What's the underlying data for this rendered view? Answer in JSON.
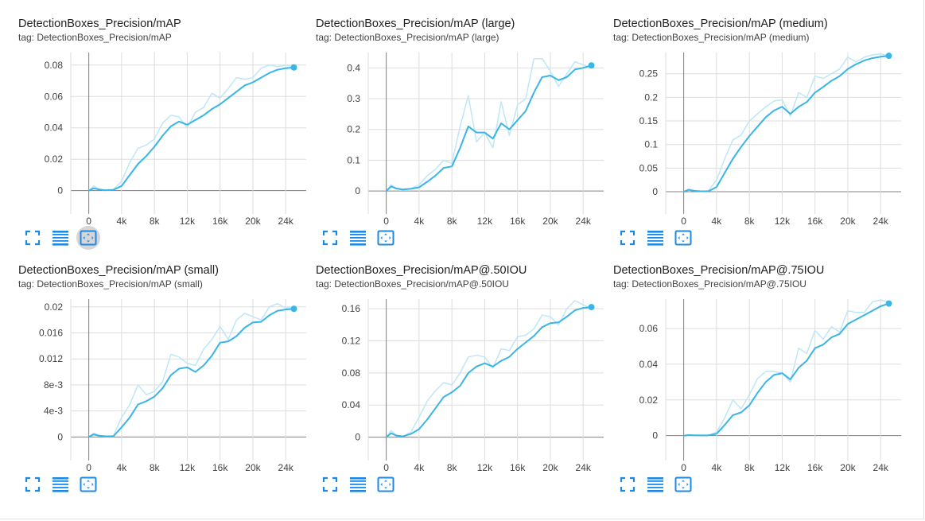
{
  "colors": {
    "smoothed": "#39b5e6",
    "raw": "#bfe6f7",
    "axis": "#808080",
    "grid": "#dddddd",
    "icon": "#1e88e5"
  },
  "buttons": {
    "fit": "fit-domain-icon",
    "log": "toggle-log-scale-icon",
    "expand": "expand-chart-icon"
  },
  "chart_data": [
    {
      "type": "line",
      "title": "DetectionBoxes_Precision/mAP",
      "tag": "tag: DetectionBoxes_Precision/mAP",
      "xlim": [
        -2000,
        26500
      ],
      "ylim": [
        -0.0108,
        0.088
      ],
      "x_ticks": [
        0,
        4000,
        8000,
        12000,
        16000,
        20000,
        24000
      ],
      "x_tick_labels": [
        "0",
        "4k",
        "8k",
        "12k",
        "16k",
        "20k",
        "24k"
      ],
      "y_ticks": [
        0,
        0.02,
        0.04,
        0.06,
        0.08
      ],
      "y_tick_labels": [
        "0",
        "0.02",
        "0.04",
        "0.06",
        "0.08"
      ],
      "x": [
        0,
        600,
        1200,
        2000,
        3000,
        4000,
        5000,
        6000,
        7000,
        8000,
        9000,
        10000,
        11000,
        12000,
        13000,
        14000,
        15000,
        16000,
        17000,
        18000,
        19000,
        20000,
        21000,
        22000,
        23000,
        24000,
        25000
      ],
      "series": [
        {
          "name": "smoothed",
          "values": [
            0.0,
            0.0015,
            0.0008,
            0.0003,
            0.0005,
            0.003,
            0.01,
            0.017,
            0.022,
            0.028,
            0.035,
            0.041,
            0.044,
            0.042,
            0.045,
            0.048,
            0.052,
            0.055,
            0.059,
            0.063,
            0.067,
            0.069,
            0.072,
            0.075,
            0.077,
            0.078,
            0.0785
          ]
        },
        {
          "name": "raw",
          "values": [
            0.0,
            0.003,
            0.001,
            0.0,
            0.0008,
            0.006,
            0.018,
            0.027,
            0.029,
            0.033,
            0.043,
            0.048,
            0.047,
            0.04,
            0.05,
            0.053,
            0.062,
            0.059,
            0.065,
            0.072,
            0.071,
            0.072,
            0.078,
            0.08,
            0.079,
            0.08,
            0.079
          ]
        }
      ]
    },
    {
      "type": "line",
      "title": "DetectionBoxes_Precision/mAP (large)",
      "tag": "tag: DetectionBoxes_Precision/mAP (large)",
      "xlim": [
        -2000,
        26500
      ],
      "ylim": [
        -0.054,
        0.45
      ],
      "x_ticks": [
        0,
        4000,
        8000,
        12000,
        16000,
        20000,
        24000
      ],
      "x_tick_labels": [
        "0",
        "4k",
        "8k",
        "12k",
        "16k",
        "20k",
        "24k"
      ],
      "y_ticks": [
        0,
        0.1,
        0.2,
        0.3,
        0.4
      ],
      "y_tick_labels": [
        "0",
        "0.1",
        "0.2",
        "0.3",
        "0.4"
      ],
      "x": [
        0,
        600,
        1200,
        2000,
        3000,
        4000,
        5000,
        6000,
        7000,
        8000,
        9000,
        10000,
        11000,
        12000,
        13000,
        14000,
        15000,
        16000,
        17000,
        18000,
        19000,
        20000,
        21000,
        22000,
        23000,
        24000,
        25000
      ],
      "series": [
        {
          "name": "smoothed",
          "values": [
            0.0,
            0.015,
            0.008,
            0.005,
            0.007,
            0.012,
            0.03,
            0.05,
            0.075,
            0.08,
            0.14,
            0.21,
            0.19,
            0.19,
            0.17,
            0.22,
            0.2,
            0.23,
            0.26,
            0.32,
            0.37,
            0.375,
            0.36,
            0.37,
            0.395,
            0.4,
            0.408
          ]
        },
        {
          "name": "raw",
          "values": [
            0.0,
            0.02,
            0.01,
            0.006,
            0.008,
            0.02,
            0.05,
            0.07,
            0.1,
            0.09,
            0.21,
            0.31,
            0.16,
            0.19,
            0.14,
            0.29,
            0.18,
            0.28,
            0.3,
            0.43,
            0.43,
            0.39,
            0.34,
            0.38,
            0.42,
            0.41,
            0.4
          ]
        }
      ]
    },
    {
      "type": "line",
      "title": "DetectionBoxes_Precision/mAP (medium)",
      "tag": "tag: DetectionBoxes_Precision/mAP (medium)",
      "xlim": [
        -2000,
        26500
      ],
      "ylim": [
        -0.0336,
        0.295
      ],
      "x_ticks": [
        0,
        4000,
        8000,
        12000,
        16000,
        20000,
        24000
      ],
      "x_tick_labels": [
        "0",
        "4k",
        "8k",
        "12k",
        "16k",
        "20k",
        "24k"
      ],
      "y_ticks": [
        0,
        0.05,
        0.1,
        0.15,
        0.2,
        0.25
      ],
      "y_tick_labels": [
        "0",
        "0.05",
        "0.1",
        "0.15",
        "0.2",
        "0.25"
      ],
      "x": [
        0,
        600,
        1200,
        2000,
        3000,
        4000,
        5000,
        6000,
        7000,
        8000,
        9000,
        10000,
        11000,
        12000,
        13000,
        14000,
        15000,
        16000,
        17000,
        18000,
        19000,
        20000,
        21000,
        22000,
        23000,
        24000,
        25000
      ],
      "series": [
        {
          "name": "smoothed",
          "values": [
            0.0,
            0.004,
            0.002,
            0.001,
            0.001,
            0.01,
            0.04,
            0.07,
            0.095,
            0.118,
            0.138,
            0.158,
            0.172,
            0.18,
            0.165,
            0.18,
            0.19,
            0.21,
            0.222,
            0.235,
            0.245,
            0.26,
            0.27,
            0.278,
            0.283,
            0.286,
            0.288
          ]
        },
        {
          "name": "raw",
          "values": [
            0.0,
            0.006,
            0.003,
            0.001,
            0.002,
            0.025,
            0.07,
            0.11,
            0.12,
            0.15,
            0.165,
            0.18,
            0.192,
            0.195,
            0.16,
            0.21,
            0.2,
            0.245,
            0.24,
            0.25,
            0.26,
            0.285,
            0.275,
            0.285,
            0.29,
            0.292,
            0.288
          ]
        }
      ]
    },
    {
      "type": "line",
      "title": "DetectionBoxes_Precision/mAP (small)",
      "tag": "tag: DetectionBoxes_Precision/mAP (small)",
      "xlim": [
        -2000,
        26500
      ],
      "ylim": [
        -0.00265,
        0.0212
      ],
      "x_ticks": [
        0,
        4000,
        8000,
        12000,
        16000,
        20000,
        24000
      ],
      "x_tick_labels": [
        "0",
        "4k",
        "8k",
        "12k",
        "16k",
        "20k",
        "24k"
      ],
      "y_ticks": [
        0,
        0.004,
        0.008,
        0.012,
        0.016,
        0.02
      ],
      "y_tick_labels": [
        "0",
        "4e-3",
        "8e-3",
        "0.012",
        "0.016",
        "0.02"
      ],
      "x": [
        0,
        600,
        1200,
        2000,
        3000,
        4000,
        5000,
        6000,
        7000,
        8000,
        9000,
        10000,
        11000,
        12000,
        13000,
        14000,
        15000,
        16000,
        17000,
        18000,
        19000,
        20000,
        21000,
        22000,
        23000,
        24000,
        25000
      ],
      "series": [
        {
          "name": "smoothed",
          "values": [
            0.0,
            0.0004,
            0.0002,
            0.0001,
            0.0001,
            0.0015,
            0.003,
            0.005,
            0.0055,
            0.0062,
            0.0075,
            0.0095,
            0.0105,
            0.0107,
            0.01,
            0.011,
            0.0125,
            0.0145,
            0.0147,
            0.0155,
            0.0168,
            0.0176,
            0.0177,
            0.0187,
            0.0194,
            0.0196,
            0.0197
          ]
        },
        {
          "name": "raw",
          "values": [
            0.0,
            0.0006,
            0.0003,
            0.0001,
            0.0002,
            0.003,
            0.005,
            0.008,
            0.0065,
            0.007,
            0.0085,
            0.0127,
            0.0123,
            0.0113,
            0.011,
            0.0135,
            0.015,
            0.017,
            0.015,
            0.018,
            0.019,
            0.0185,
            0.018,
            0.02,
            0.0205,
            0.0198,
            0.02
          ]
        }
      ]
    },
    {
      "type": "line",
      "title": "DetectionBoxes_Precision/mAP@.50IOU",
      "tag": "tag: DetectionBoxes_Precision/mAP@.50IOU",
      "xlim": [
        -2000,
        26500
      ],
      "ylim": [
        -0.0212,
        0.172
      ],
      "x_ticks": [
        0,
        4000,
        8000,
        12000,
        16000,
        20000,
        24000
      ],
      "x_tick_labels": [
        "0",
        "4k",
        "8k",
        "12k",
        "16k",
        "20k",
        "24k"
      ],
      "y_ticks": [
        0,
        0.04,
        0.08,
        0.12,
        0.16
      ],
      "y_tick_labels": [
        "0",
        "0.04",
        "0.08",
        "0.12",
        "0.16"
      ],
      "x": [
        0,
        600,
        1200,
        2000,
        3000,
        4000,
        5000,
        6000,
        7000,
        8000,
        9000,
        10000,
        11000,
        12000,
        13000,
        14000,
        15000,
        16000,
        17000,
        18000,
        19000,
        20000,
        21000,
        22000,
        23000,
        24000,
        25000
      ],
      "series": [
        {
          "name": "smoothed",
          "values": [
            0.0,
            0.005,
            0.002,
            0.001,
            0.004,
            0.01,
            0.022,
            0.036,
            0.05,
            0.056,
            0.064,
            0.08,
            0.088,
            0.092,
            0.088,
            0.095,
            0.1,
            0.11,
            0.118,
            0.126,
            0.137,
            0.142,
            0.143,
            0.15,
            0.158,
            0.161,
            0.162
          ]
        },
        {
          "name": "raw",
          "values": [
            0.0,
            0.008,
            0.003,
            0.001,
            0.006,
            0.025,
            0.045,
            0.058,
            0.068,
            0.065,
            0.08,
            0.1,
            0.102,
            0.1,
            0.086,
            0.11,
            0.108,
            0.125,
            0.127,
            0.135,
            0.152,
            0.15,
            0.14,
            0.16,
            0.17,
            0.165,
            0.16
          ]
        }
      ]
    },
    {
      "type": "line",
      "title": "DetectionBoxes_Precision/mAP@.75IOU",
      "tag": "tag: DetectionBoxes_Precision/mAP@.75IOU",
      "xlim": [
        -2000,
        26500
      ],
      "ylim": [
        -0.0104,
        0.0765
      ],
      "x_ticks": [
        0,
        4000,
        8000,
        12000,
        16000,
        20000,
        24000
      ],
      "x_tick_labels": [
        "0",
        "4k",
        "8k",
        "12k",
        "16k",
        "20k",
        "24k"
      ],
      "y_ticks": [
        0,
        0.02,
        0.04,
        0.06
      ],
      "y_tick_labels": [
        "0",
        "0.02",
        "0.04",
        "0.06"
      ],
      "x": [
        0,
        600,
        1200,
        2000,
        3000,
        4000,
        5000,
        6000,
        7000,
        8000,
        9000,
        10000,
        11000,
        12000,
        13000,
        14000,
        15000,
        16000,
        17000,
        18000,
        19000,
        20000,
        21000,
        22000,
        23000,
        24000,
        25000
      ],
      "series": [
        {
          "name": "smoothed",
          "values": [
            0.0,
            0.0003,
            0.0002,
            0.0001,
            0.0001,
            0.001,
            0.006,
            0.0115,
            0.013,
            0.017,
            0.024,
            0.03,
            0.034,
            0.035,
            0.0315,
            0.038,
            0.042,
            0.049,
            0.051,
            0.055,
            0.057,
            0.0625,
            0.065,
            0.0675,
            0.07,
            0.0725,
            0.074
          ]
        },
        {
          "name": "raw",
          "values": [
            0.0,
            0.0005,
            0.0003,
            0.0001,
            0.0002,
            0.002,
            0.01,
            0.02,
            0.015,
            0.023,
            0.032,
            0.036,
            0.036,
            0.035,
            0.03,
            0.049,
            0.046,
            0.059,
            0.054,
            0.061,
            0.058,
            0.07,
            0.069,
            0.069,
            0.075,
            0.076,
            0.075
          ]
        }
      ]
    }
  ]
}
